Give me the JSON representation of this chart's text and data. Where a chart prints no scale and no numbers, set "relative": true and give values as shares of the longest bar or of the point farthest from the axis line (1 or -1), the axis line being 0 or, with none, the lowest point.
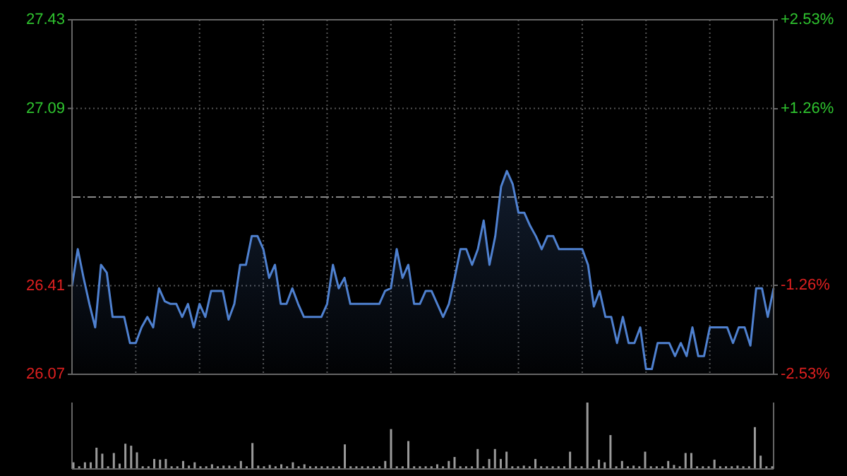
{
  "chart_data": [
    {
      "type": "area",
      "color": "#4f81d0",
      "categories": [
        null,
        null,
        null,
        null,
        null,
        null,
        null,
        null,
        null,
        null,
        null,
        null,
        null,
        null,
        null,
        null,
        null,
        null,
        null,
        null,
        null,
        null,
        null,
        null,
        null,
        null,
        null,
        null,
        null,
        null,
        null,
        null,
        null,
        null,
        null,
        null,
        null,
        null,
        null,
        null,
        null,
        null,
        null,
        null,
        null,
        null,
        null,
        null,
        null,
        null,
        null,
        null,
        null,
        null,
        null,
        null,
        null,
        null,
        null,
        null,
        null,
        null,
        null,
        null,
        null,
        null,
        null,
        null,
        null,
        null,
        null,
        null,
        null,
        null,
        null,
        null,
        null,
        null,
        null,
        null,
        null,
        null,
        null,
        null,
        null,
        null,
        null,
        null,
        null,
        null,
        null,
        null,
        null,
        null,
        null,
        null,
        null,
        null,
        null,
        null,
        null,
        null,
        null,
        null,
        null,
        null,
        null,
        null,
        null,
        null,
        null,
        null,
        null,
        null,
        null,
        null,
        null,
        null,
        null,
        null,
        null,
        null
      ],
      "ylim": [
        26.07,
        27.43
      ],
      "yticks": [
        26.07,
        26.41,
        27.09,
        27.43
      ],
      "y2lim": [
        -2.53,
        2.53
      ],
      "y2ticks": [
        {
          "value": -2.53,
          "label": "-2.53%"
        },
        {
          "value": -1.26,
          "label": "-1.26%"
        },
        {
          "value": 1.26,
          "label": "+1.26%"
        },
        {
          "value": 2.53,
          "label": "+2.53%"
        }
      ],
      "ref_lines": [
        {
          "axis": "y",
          "value": 26.75,
          "line_style": "dashed"
        }
      ],
      "grid": true,
      "values": [
        26.41,
        26.55,
        26.44,
        26.34,
        26.25,
        26.49,
        26.46,
        26.29,
        26.29,
        26.29,
        26.19,
        26.19,
        26.25,
        26.29,
        26.25,
        26.4,
        26.35,
        26.34,
        26.34,
        26.29,
        26.34,
        26.25,
        26.34,
        26.29,
        26.39,
        26.39,
        26.39,
        26.28,
        26.34,
        26.49,
        26.49,
        26.6,
        26.6,
        26.55,
        26.44,
        26.49,
        26.34,
        26.34,
        26.4,
        26.34,
        26.29,
        26.29,
        26.29,
        26.29,
        26.34,
        26.49,
        26.4,
        26.44,
        26.34,
        26.34,
        26.34,
        26.34,
        26.34,
        26.34,
        26.39,
        26.4,
        26.55,
        26.44,
        26.49,
        26.34,
        26.34,
        26.39,
        26.39,
        26.34,
        26.29,
        26.34,
        26.44,
        26.55,
        26.55,
        26.49,
        26.55,
        26.66,
        26.49,
        26.6,
        26.79,
        26.85,
        26.8,
        26.69,
        26.69,
        26.64,
        26.6,
        26.55,
        26.6,
        26.6,
        26.55,
        26.55,
        26.55,
        26.55,
        26.55,
        26.49,
        26.33,
        26.39,
        26.29,
        26.29,
        26.19,
        26.29,
        26.19,
        26.19,
        26.25,
        26.09,
        26.09,
        26.19,
        26.19,
        26.19,
        26.14,
        26.19,
        26.14,
        26.25,
        26.14,
        26.14,
        26.25,
        26.25,
        26.25,
        26.25,
        26.19,
        26.25,
        26.25,
        26.18,
        26.4,
        26.4,
        26.29,
        26.4
      ]
    },
    {
      "type": "bar",
      "relative": true,
      "color": "#9a9a9a",
      "categories": [
        null,
        null,
        null,
        null,
        null,
        null,
        null,
        null,
        null,
        null,
        null,
        null,
        null,
        null,
        null,
        null,
        null,
        null,
        null,
        null,
        null,
        null,
        null,
        null,
        null,
        null,
        null,
        null,
        null,
        null,
        null,
        null,
        null,
        null,
        null,
        null,
        null,
        null,
        null,
        null,
        null,
        null,
        null,
        null,
        null,
        null,
        null,
        null,
        null,
        null,
        null,
        null,
        null,
        null,
        null,
        null,
        null,
        null,
        null,
        null,
        null,
        null,
        null,
        null,
        null,
        null,
        null,
        null,
        null,
        null,
        null,
        null,
        null,
        null,
        null,
        null,
        null,
        null,
        null,
        null,
        null,
        null,
        null,
        null,
        null,
        null,
        null,
        null,
        null,
        null,
        null,
        null,
        null,
        null,
        null,
        null,
        null,
        null,
        null,
        null,
        null,
        null,
        null,
        null,
        null,
        null,
        null,
        null,
        null,
        null,
        null,
        null,
        null,
        null,
        null,
        null,
        null,
        null,
        null,
        null,
        null,
        null
      ],
      "values": [
        0.1,
        0.04,
        0.1,
        0.1,
        0.32,
        0.23,
        0.04,
        0.24,
        0.08,
        0.38,
        0.35,
        0.25,
        0.04,
        0.04,
        0.15,
        0.14,
        0.15,
        0.04,
        0.04,
        0.12,
        0.05,
        0.1,
        0.04,
        0.04,
        0.07,
        0.04,
        0.05,
        0.05,
        0.04,
        0.12,
        0.04,
        0.39,
        0.05,
        0.04,
        0.06,
        0.04,
        0.07,
        0.04,
        0.1,
        0.04,
        0.07,
        0.04,
        0.04,
        0.04,
        0.04,
        0.04,
        0.04,
        0.37,
        0.04,
        0.04,
        0.04,
        0.04,
        0.04,
        0.04,
        0.12,
        0.6,
        0.04,
        0.04,
        0.42,
        0.04,
        0.04,
        0.04,
        0.04,
        0.07,
        0.04,
        0.12,
        0.18,
        0.04,
        0.04,
        0.04,
        0.3,
        0.04,
        0.15,
        0.3,
        0.15,
        0.26,
        0.04,
        0.04,
        0.05,
        0.04,
        0.15,
        0.04,
        0.04,
        0.04,
        0.04,
        0.04,
        0.26,
        0.04,
        0.04,
        1.0,
        0.04,
        0.14,
        0.1,
        0.51,
        0.04,
        0.12,
        0.04,
        0.05,
        0.04,
        0.26,
        0.04,
        0.04,
        0.04,
        0.12,
        0.06,
        0.04,
        0.24,
        0.24,
        0.04,
        0.04,
        0.04,
        0.14,
        0.04,
        0.04,
        0.04,
        0.05,
        0.04,
        0.04,
        0.63,
        0.2,
        0.04,
        0.04
      ]
    }
  ]
}
